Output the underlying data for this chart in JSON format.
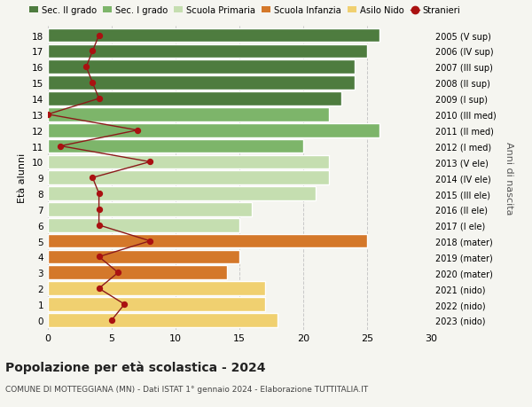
{
  "ages": [
    18,
    17,
    16,
    15,
    14,
    13,
    12,
    11,
    10,
    9,
    8,
    7,
    6,
    5,
    4,
    3,
    2,
    1,
    0
  ],
  "bar_values": [
    26,
    25,
    24,
    24,
    23,
    22,
    26,
    20,
    22,
    22,
    21,
    16,
    15,
    25,
    15,
    14,
    17,
    17,
    18
  ],
  "bar_colors": [
    "#4e7c3f",
    "#4e7c3f",
    "#4e7c3f",
    "#4e7c3f",
    "#4e7c3f",
    "#7db56a",
    "#7db56a",
    "#7db56a",
    "#c5deb0",
    "#c5deb0",
    "#c5deb0",
    "#c5deb0",
    "#c5deb0",
    "#d4782a",
    "#d4782a",
    "#d4782a",
    "#f0d070",
    "#f0d070",
    "#f0d070"
  ],
  "stranieri_values": [
    4,
    3.5,
    3,
    3.5,
    4,
    0,
    7,
    1,
    8,
    3.5,
    4,
    4,
    4,
    8,
    4,
    5.5,
    4,
    6,
    5
  ],
  "right_labels": [
    "2005 (V sup)",
    "2006 (IV sup)",
    "2007 (III sup)",
    "2008 (II sup)",
    "2009 (I sup)",
    "2010 (III med)",
    "2011 (II med)",
    "2012 (I med)",
    "2013 (V ele)",
    "2014 (IV ele)",
    "2015 (III ele)",
    "2016 (II ele)",
    "2017 (I ele)",
    "2018 (mater)",
    "2019 (mater)",
    "2020 (mater)",
    "2021 (nido)",
    "2022 (nido)",
    "2023 (nido)"
  ],
  "legend_labels": [
    "Sec. II grado",
    "Sec. I grado",
    "Scuola Primaria",
    "Scuola Infanzia",
    "Asilo Nido",
    "Stranieri"
  ],
  "legend_colors": [
    "#4e7c3f",
    "#7db56a",
    "#c5deb0",
    "#d4782a",
    "#f0d070",
    "#aa1111"
  ],
  "ylabel_left": "Età alunni",
  "ylabel_right": "Anni di nascita",
  "title": "Popolazione per età scolastica - 2024",
  "subtitle": "COMUNE DI MOTTEGGIANA (MN) - Dati ISTAT 1° gennaio 2024 - Elaborazione TUTTITALIA.IT",
  "xlim": [
    0,
    30
  ],
  "background_color": "#f5f5f0"
}
